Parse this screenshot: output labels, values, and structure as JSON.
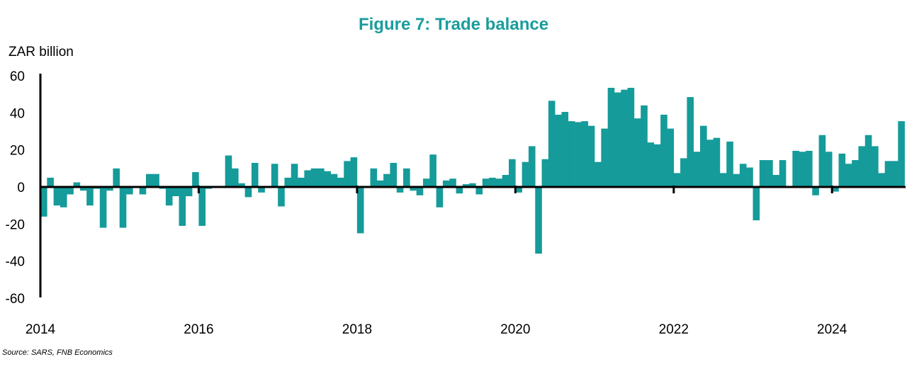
{
  "colors": {
    "bar": "#159b9a",
    "title": "#1a9c9c",
    "axis": "#000000"
  },
  "chart_data": {
    "type": "bar",
    "title": "Figure 7: Trade balance",
    "ylabel": "ZAR billion",
    "xlabel": "",
    "source": "Source: SARS, FNB Economics",
    "ylim": [
      -60,
      60
    ],
    "yticks": [
      "60",
      "40",
      "20",
      "0",
      "-20",
      "-40",
      "-60"
    ],
    "xticks": [
      "2014",
      "2016",
      "2018",
      "2020",
      "2022",
      "2024"
    ],
    "frequency": "monthly",
    "start": "2014-01",
    "end": "2024-11",
    "values": [
      -16,
      5,
      -10,
      -11,
      -4,
      2.5,
      -2,
      -10,
      -1,
      -22,
      -2,
      10,
      -22,
      -4,
      0,
      -4,
      7,
      7,
      -1,
      -10,
      -5,
      -21,
      -5,
      8,
      -21,
      -1,
      -0.5,
      0.5,
      17,
      10,
      2,
      -5.5,
      13,
      -3,
      0.5,
      12.5,
      -10.5,
      5,
      12.5,
      5,
      9,
      10,
      10,
      8.5,
      7,
      5,
      14,
      16,
      -25,
      -0.5,
      10,
      3.5,
      7,
      13,
      -3,
      10,
      -2,
      -4.5,
      4.5,
      17.5,
      -11,
      3.5,
      4.5,
      -3.5,
      1.5,
      2,
      -4,
      4.5,
      5,
      4.5,
      6.5,
      15,
      -3,
      13.5,
      22,
      -36,
      15,
      46.5,
      39,
      40.5,
      35.5,
      35,
      35.5,
      33,
      13.5,
      31.5,
      53.5,
      51,
      52.5,
      53.5,
      37,
      44,
      24,
      23,
      39,
      31.5,
      7.5,
      15.5,
      48.5,
      19,
      33,
      25.5,
      26.5,
      7.5,
      24.5,
      7,
      12.5,
      10.5,
      -18,
      14.5,
      14.5,
      6.5,
      14.5,
      0.5,
      19.5,
      19,
      19.5,
      -4.5,
      28,
      19,
      -2.5,
      18,
      12.5,
      14.5,
      22,
      28,
      22,
      7.5,
      14,
      14,
      35.5
    ]
  }
}
